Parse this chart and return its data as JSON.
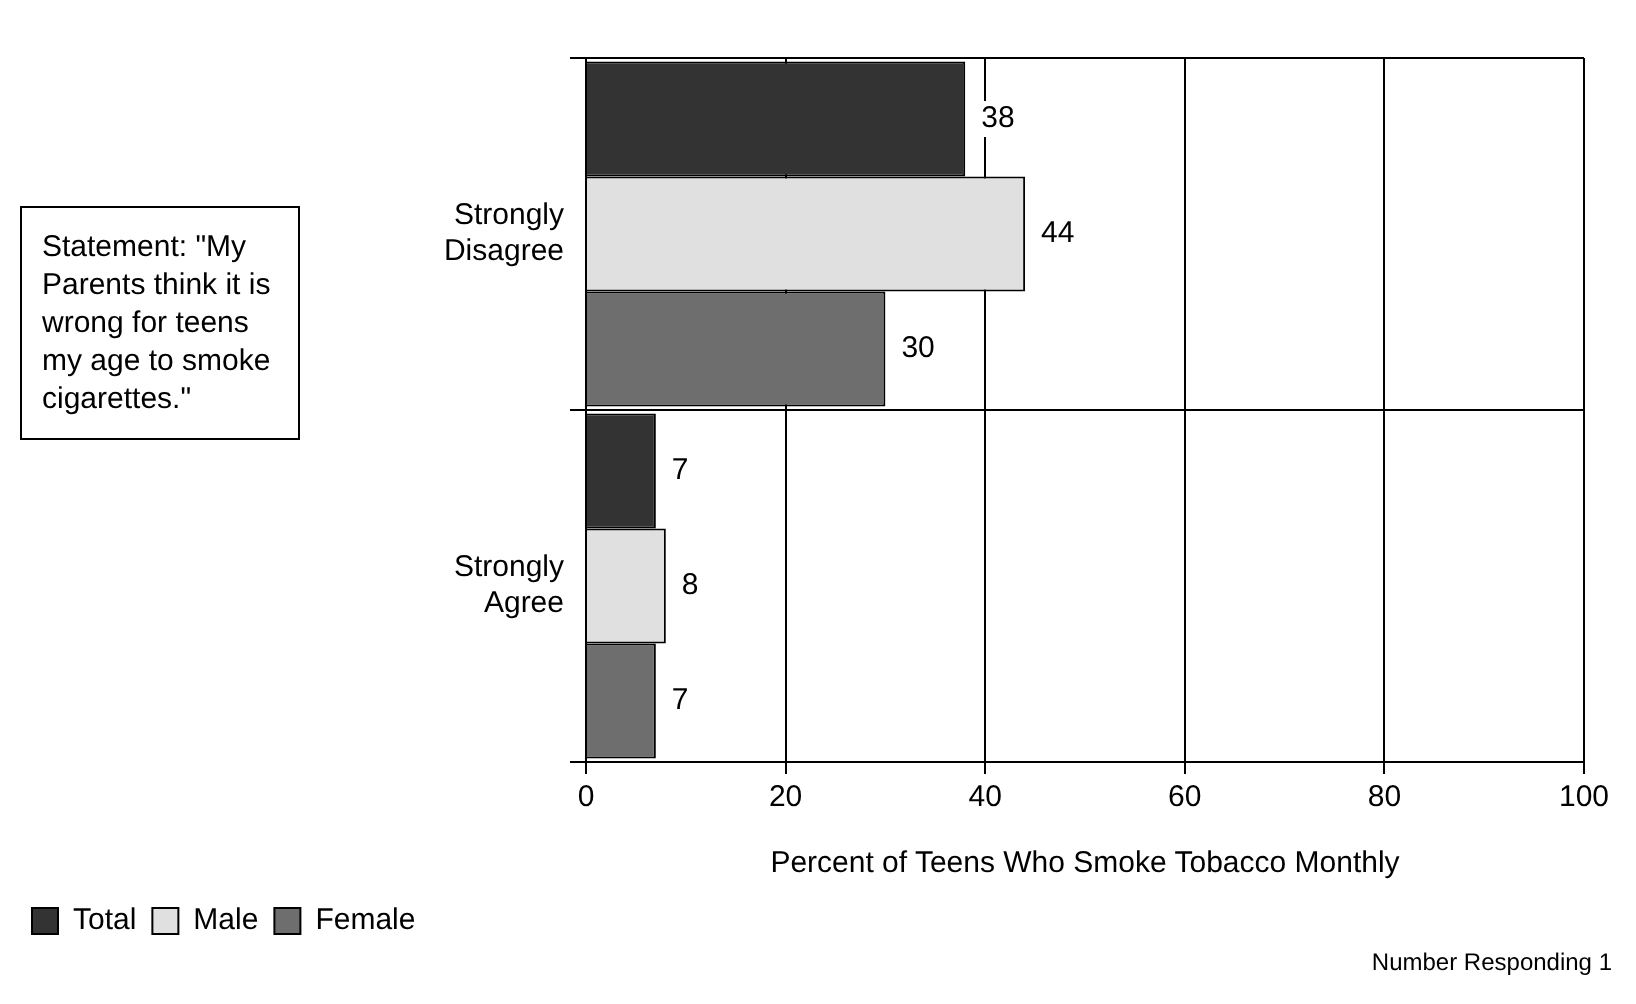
{
  "chart_data": {
    "type": "bar",
    "orientation": "horizontal",
    "xlabel": "Percent of Teens Who Smoke Tobacco Monthly",
    "categories": [
      "Strongly Disagree",
      "Strongly Agree"
    ],
    "series": [
      {
        "name": "Total",
        "color": "#333333",
        "values": [
          38,
          7
        ]
      },
      {
        "name": "Male",
        "color": "#e0e0e0",
        "values": [
          44,
          8
        ]
      },
      {
        "name": "Female",
        "color": "#6e6e6e",
        "values": [
          30,
          7
        ]
      }
    ],
    "xlim": [
      0,
      100
    ],
    "xticks": [
      0,
      20,
      40,
      60,
      80,
      100
    ],
    "grid": true,
    "legend": "bottom",
    "data_labels": true,
    "annotations": [
      "Statement: \"My Parents think it is wrong for teens my age to smoke cigarettes.\"",
      "Number Responding 1"
    ]
  }
}
